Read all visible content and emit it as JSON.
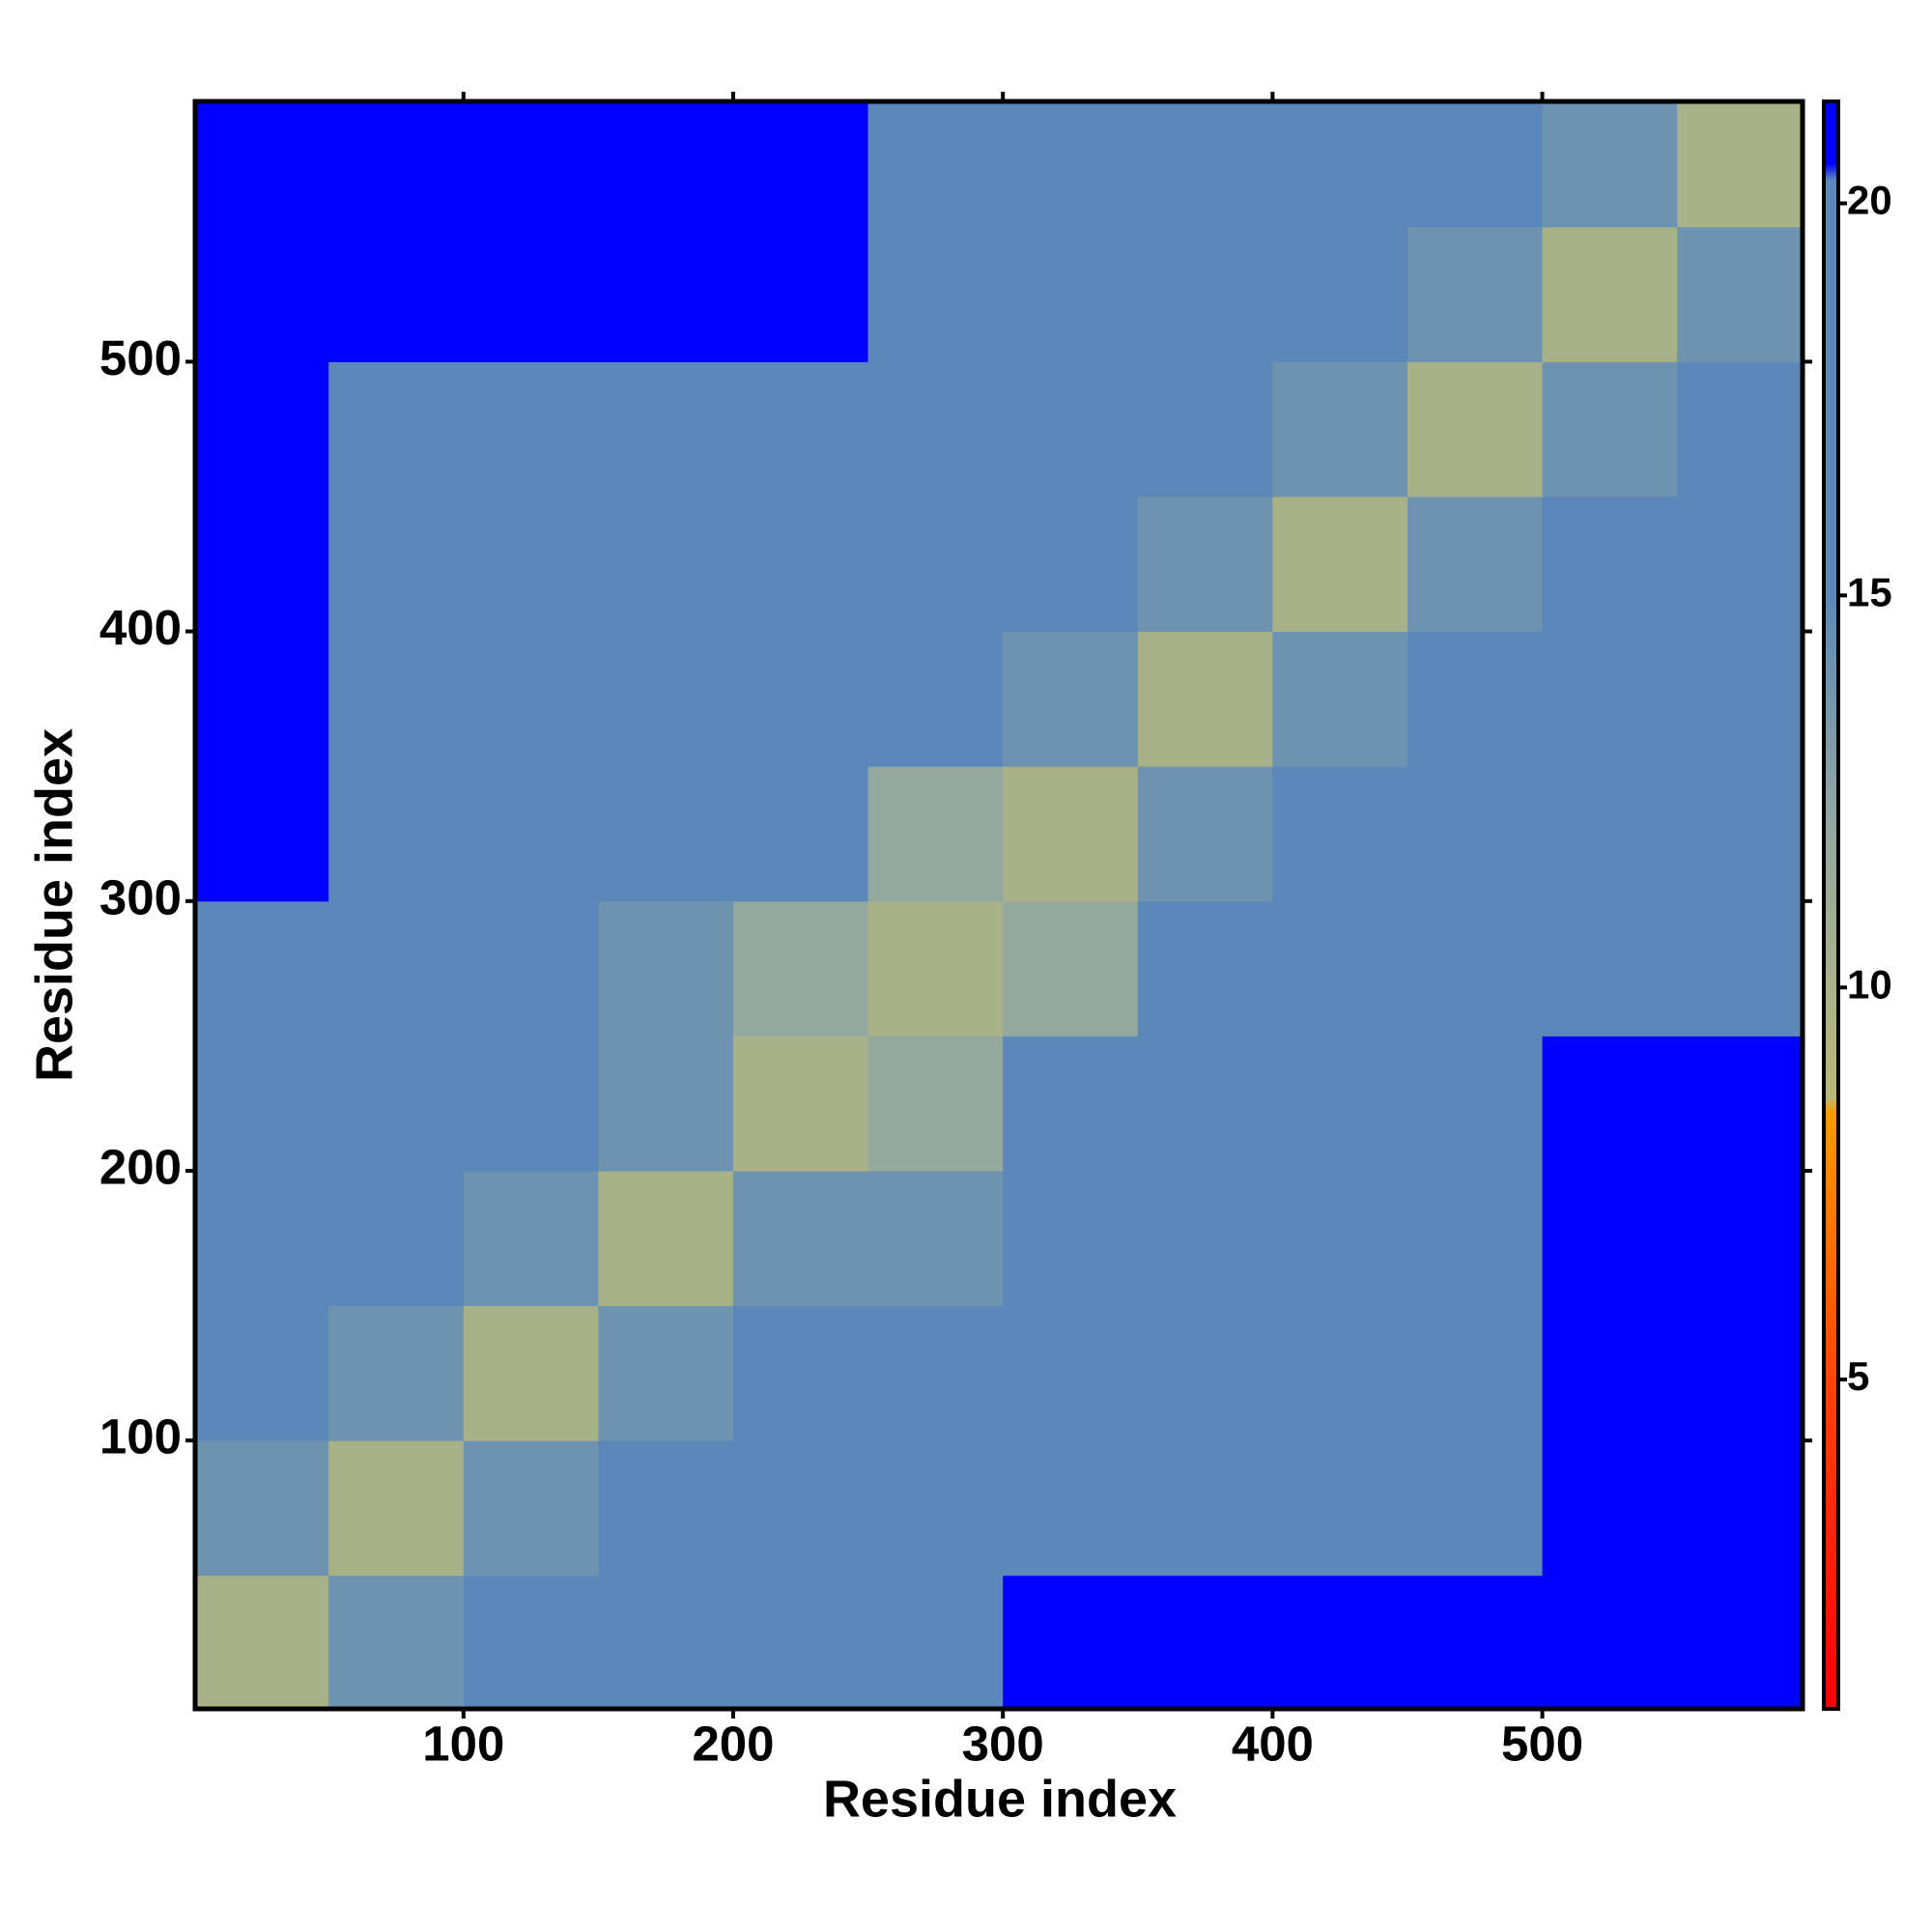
{
  "chart_data": {
    "type": "heatmap",
    "x_label": "Residue index",
    "y_label": "Residue index",
    "bins": [
      0.5,
      50,
      100,
      150,
      200,
      250,
      300,
      350,
      400,
      450,
      500,
      550,
      596.5
    ],
    "z": [
      [
        10,
        14,
        15,
        16,
        17,
        17,
        20.5,
        21,
        21,
        21,
        21,
        21
      ],
      [
        14,
        10,
        14,
        15,
        16,
        16,
        18.5,
        18.5,
        19.5,
        19.5,
        20.5,
        20.5
      ],
      [
        15,
        14,
        10,
        14,
        15,
        15,
        18.5,
        18.5,
        19.5,
        19.5,
        20.5,
        20.5
      ],
      [
        16,
        15,
        14,
        10,
        14,
        14,
        18.5,
        18.5,
        19.5,
        19.5,
        20.5,
        20.5
      ],
      [
        17,
        16,
        15,
        14,
        10,
        12,
        18.5,
        18.5,
        19.5,
        19.5,
        20.5,
        20.5
      ],
      [
        17,
        16,
        15,
        14,
        12,
        10,
        12,
        15,
        16,
        17,
        19,
        20
      ],
      [
        20.5,
        18.5,
        18.5,
        18.5,
        18.5,
        12,
        10,
        14,
        15,
        16,
        17,
        17
      ],
      [
        21,
        18.5,
        18.5,
        18.5,
        18.5,
        15,
        14,
        10,
        14,
        15,
        16,
        17
      ],
      [
        21,
        19.5,
        19.5,
        19.5,
        19.5,
        16,
        15,
        14,
        10,
        14,
        15,
        16
      ],
      [
        21,
        19.5,
        19.5,
        19.5,
        19.5,
        17,
        16,
        15,
        14,
        10,
        14,
        15
      ],
      [
        21,
        20.5,
        20.5,
        20.5,
        20.5,
        19,
        17,
        16,
        15,
        14,
        10,
        14
      ],
      [
        21,
        20.5,
        20.5,
        20.5,
        20.5,
        20,
        17,
        17,
        16,
        15,
        14,
        10
      ]
    ],
    "xlim": [
      0.5,
      596.5
    ],
    "ylim": [
      0.5,
      596.5
    ],
    "xticks": [
      100,
      200,
      300,
      400,
      500
    ],
    "yticks": [
      100,
      200,
      300,
      400,
      500
    ],
    "colorbar": {
      "lim": [
        0.8,
        21.3
      ],
      "ticks": [
        5,
        10,
        15,
        20
      ],
      "stops": [
        [
          0.8,
          "#ff0000"
        ],
        [
          5,
          "#ff4400"
        ],
        [
          8.4,
          "#ff9900"
        ],
        [
          8.6,
          "#b8b878"
        ],
        [
          12,
          "#94a8a0"
        ],
        [
          15,
          "#5b88b8"
        ],
        [
          20.3,
          "#5b88b8"
        ],
        [
          20.5,
          "#0000ff"
        ],
        [
          21.3,
          "#0000ff"
        ]
      ]
    }
  }
}
